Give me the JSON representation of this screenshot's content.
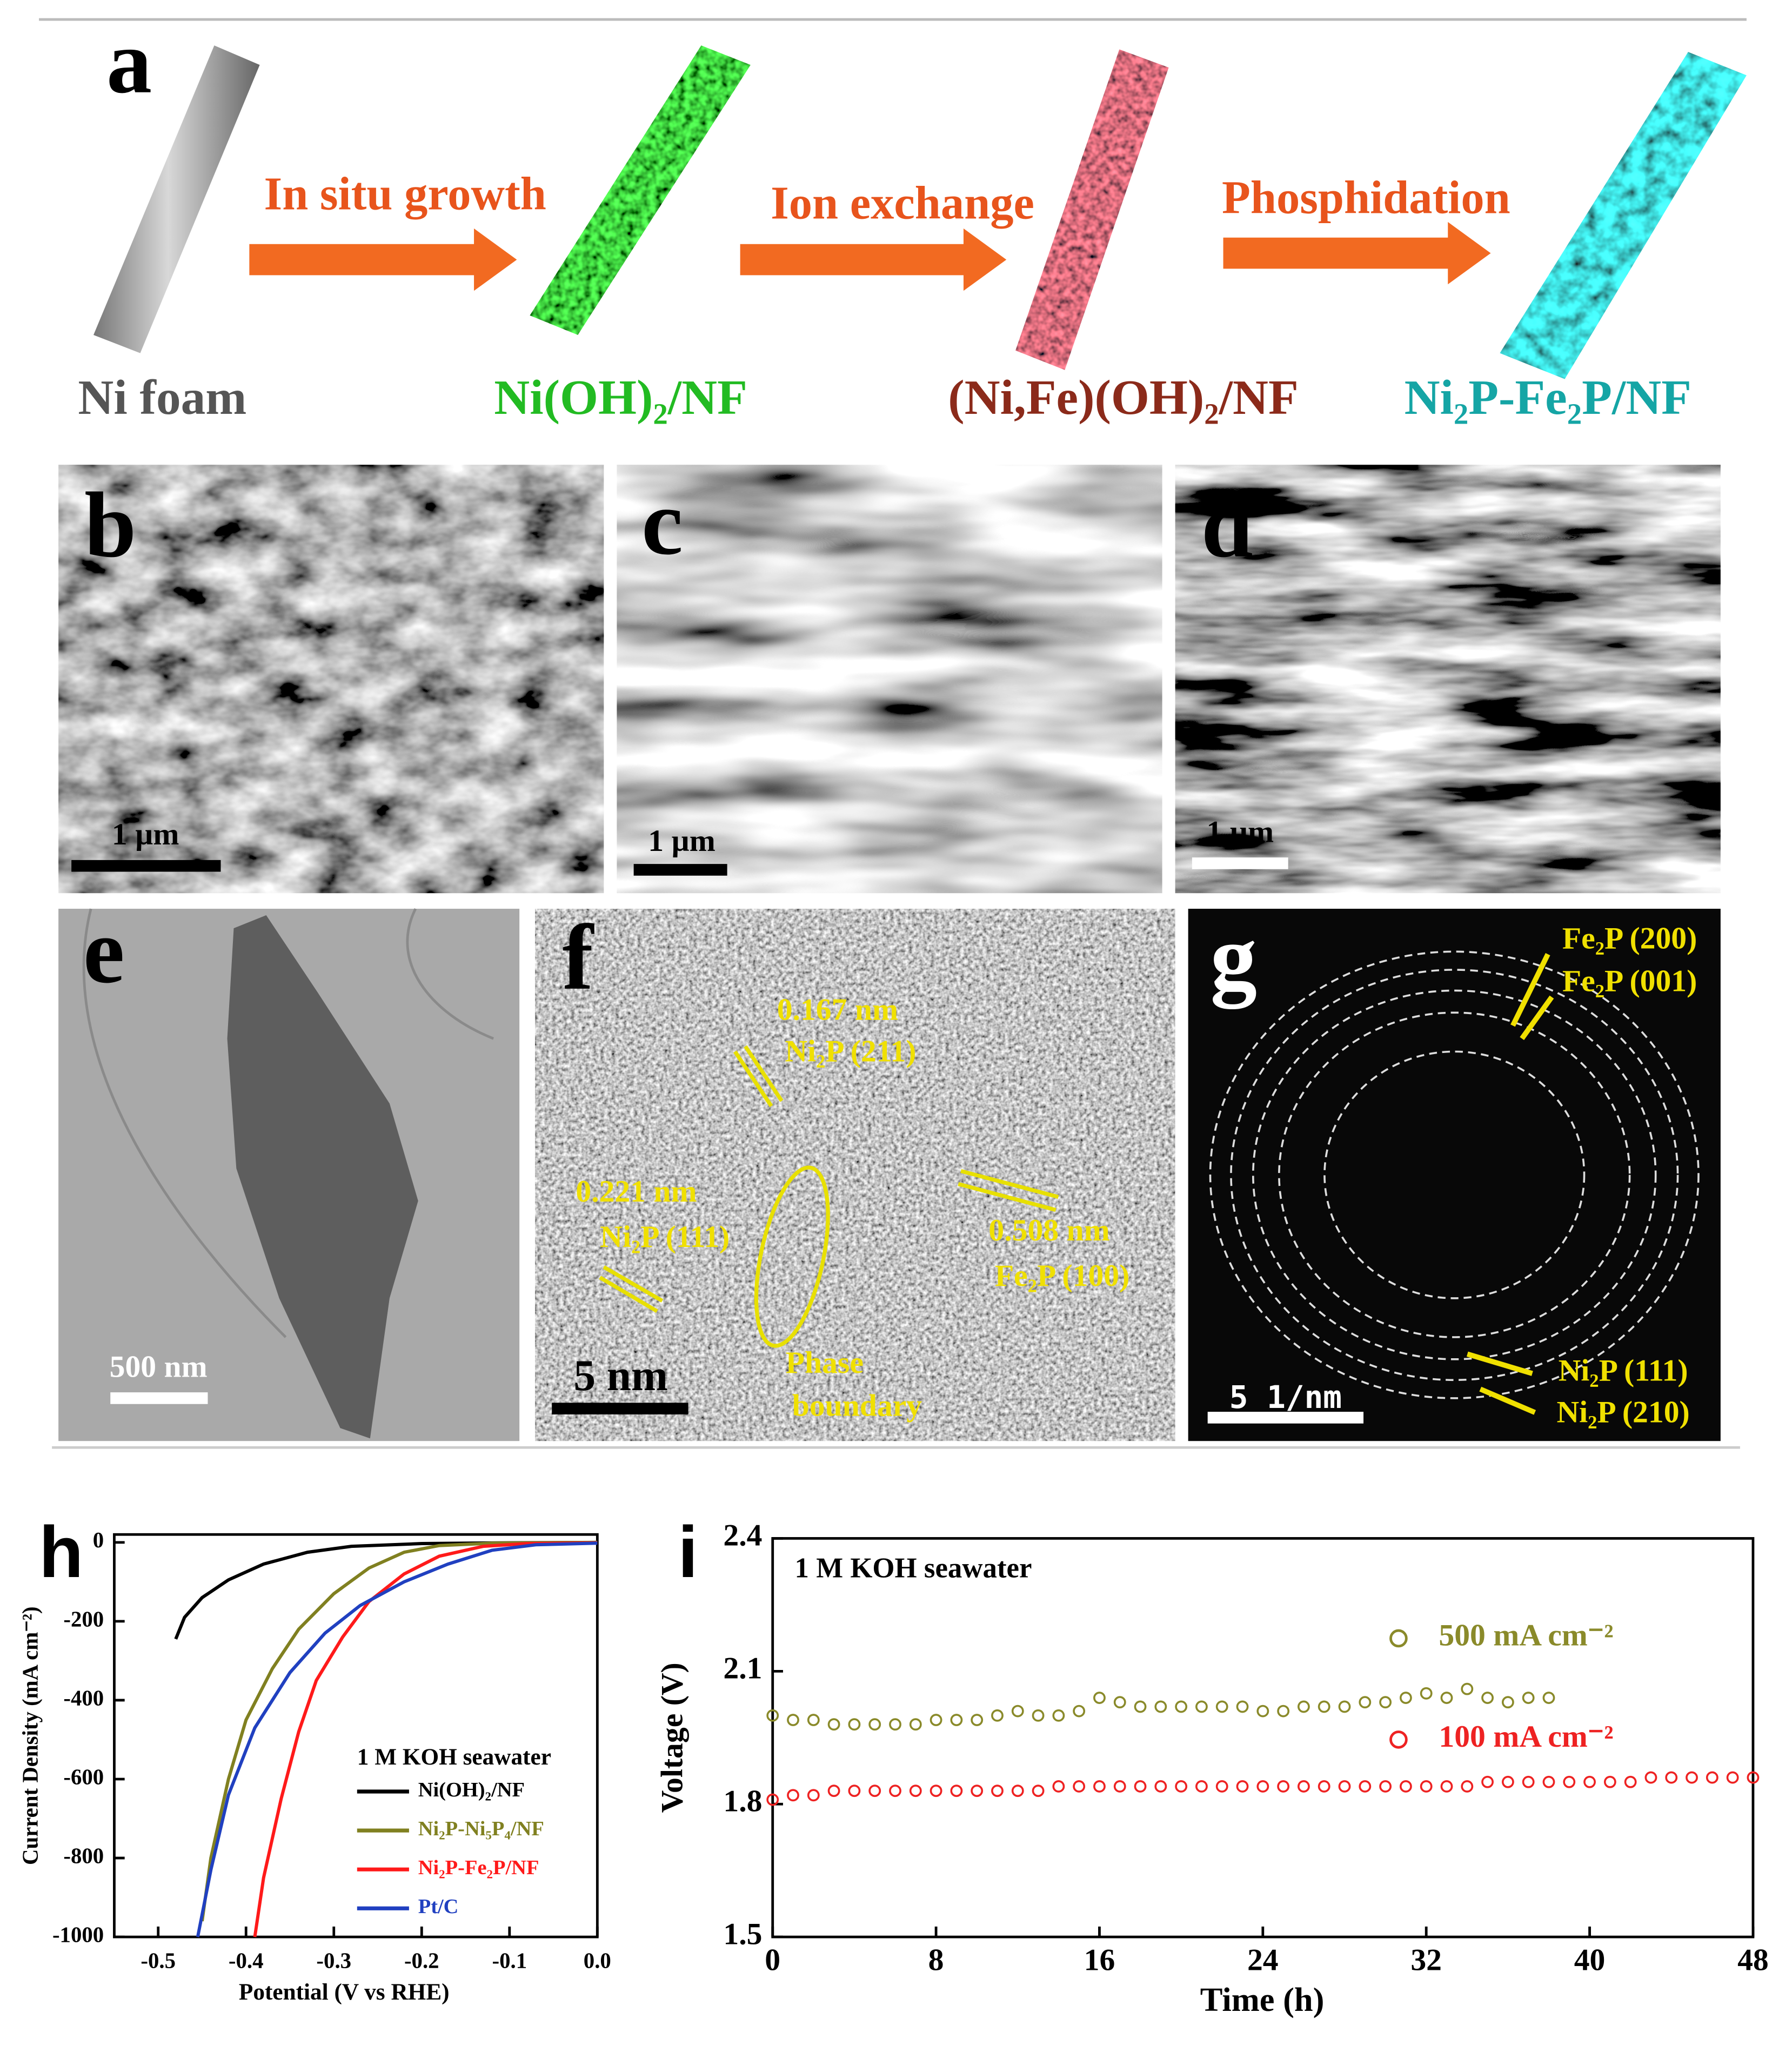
{
  "figure": {
    "scheme": {
      "label": "a",
      "steps": [
        "Ni foam",
        "Ni(OH)₂/NF",
        "(Ni,Fe)(OH)₂/NF",
        "Ni₂P-Fe₂P/NF"
      ],
      "arrows": [
        "In situ growth",
        "Ion exchange",
        "Phosphidation"
      ]
    },
    "panels": [
      {
        "label": "b",
        "scale_bar": "1 µm",
        "annotations": []
      },
      {
        "label": "c",
        "scale_bar": "1 µm",
        "annotations": []
      },
      {
        "label": "d",
        "scale_bar": "1 µm",
        "annotations": []
      },
      {
        "label": "e",
        "scale_bar": "500 nm",
        "annotations": []
      },
      {
        "label": "f",
        "scale_bar": "5 nm",
        "annotations": [
          "0.167 nm",
          "Ni₂P (211)",
          "0.221 nm",
          "Ni₂P (111)",
          "0.508 nm",
          "Fe₂P (100)",
          "Phase",
          "boundary"
        ]
      },
      {
        "label": "g",
        "scale_bar": "5 1/nm",
        "annotations": [
          "Fe₂P (200)",
          "Fe₂P (001)",
          "Ni₂P (111)",
          "Ni₂P (210)"
        ]
      }
    ]
  },
  "chart_data": [
    {
      "type": "line",
      "panel_label": "h",
      "x_label": "Potential (V vs RHE)",
      "y_label": "Current Density (mA cm⁻²)",
      "legend_title": "1 M KOH seawater",
      "xlim": [
        -0.55,
        0
      ],
      "xticks": [
        -0.5,
        -0.4,
        -0.3,
        -0.2,
        -0.1,
        {
          "value": 0,
          "label": "0.0"
        }
      ],
      "ylim": [
        -1000,
        20
      ],
      "yticks": [
        0,
        -200,
        -400,
        -600,
        -800,
        -1000
      ],
      "series": [
        {
          "name": "Ni(OH)₂/NF",
          "color": "#000000",
          "x": [
            -0.48,
            -0.47,
            -0.45,
            -0.42,
            -0.38,
            -0.33,
            -0.28,
            -0.2,
            -0.1,
            0
          ],
          "values": [
            -245,
            -190,
            -140,
            -95,
            -55,
            -25,
            -10,
            -3,
            -1,
            0
          ]
        },
        {
          "name": "Ni₂P-Ni₅P₄/NF",
          "color": "#808020",
          "x": [
            -0.45,
            -0.44,
            -0.42,
            -0.4,
            -0.37,
            -0.34,
            -0.3,
            -0.26,
            -0.22,
            -0.18,
            -0.12,
            0
          ],
          "values": [
            -960,
            -800,
            -600,
            -450,
            -320,
            -220,
            -130,
            -65,
            -25,
            -8,
            -2,
            0
          ]
        },
        {
          "name": "Ni₂P-Fe₂P/NF",
          "color": "#ff1a1a",
          "x": [
            -0.39,
            -0.38,
            -0.36,
            -0.34,
            -0.32,
            -0.29,
            -0.26,
            -0.22,
            -0.18,
            -0.13,
            -0.08,
            0
          ],
          "values": [
            -1000,
            -850,
            -650,
            -480,
            -350,
            -240,
            -150,
            -80,
            -35,
            -10,
            -3,
            -1
          ]
        },
        {
          "name": "Pt/C",
          "color": "#2040c0",
          "x": [
            -0.455,
            -0.44,
            -0.42,
            -0.39,
            -0.35,
            -0.31,
            -0.27,
            -0.22,
            -0.17,
            -0.12,
            -0.07,
            0
          ],
          "values": [
            -1000,
            -830,
            -640,
            -470,
            -330,
            -230,
            -160,
            -100,
            -55,
            -20,
            -6,
            -2
          ]
        }
      ]
    },
    {
      "type": "scatter",
      "panel_label": "i",
      "annotation": "1 M KOH seawater",
      "x_label": "Time (h)",
      "y_label": "Voltage (V)",
      "xlim": [
        0,
        48
      ],
      "xticks": [
        0,
        8,
        16,
        24,
        32,
        40,
        48
      ],
      "ylim": [
        1.5,
        2.4
      ],
      "yticks": [
        1.5,
        1.8,
        2.1,
        2.4
      ],
      "series": [
        {
          "name": "500 mA cm⁻²",
          "color": "#8a8a2a",
          "x": [
            0,
            1,
            2,
            3,
            4,
            5,
            6,
            7,
            8,
            9,
            10,
            11,
            12,
            13,
            14,
            15,
            16,
            17,
            18,
            19,
            20,
            21,
            22,
            23,
            24,
            25,
            26,
            27,
            28,
            29,
            30,
            31,
            32,
            33,
            34,
            35,
            36,
            37,
            38
          ],
          "values": [
            2.0,
            1.99,
            1.99,
            1.98,
            1.98,
            1.98,
            1.98,
            1.98,
            1.99,
            1.99,
            1.99,
            2.0,
            2.01,
            2.0,
            2.0,
            2.01,
            2.04,
            2.03,
            2.02,
            2.02,
            2.02,
            2.02,
            2.02,
            2.02,
            2.01,
            2.01,
            2.02,
            2.02,
            2.02,
            2.03,
            2.03,
            2.04,
            2.05,
            2.04,
            2.06,
            2.04,
            2.03,
            2.04,
            2.04
          ]
        },
        {
          "name": "100 mA cm⁻²",
          "color": "#ee2222",
          "x": [
            0,
            1,
            2,
            3,
            4,
            5,
            6,
            7,
            8,
            9,
            10,
            11,
            12,
            13,
            14,
            15,
            16,
            17,
            18,
            19,
            20,
            21,
            22,
            23,
            24,
            25,
            26,
            27,
            28,
            29,
            30,
            31,
            32,
            33,
            34,
            35,
            36,
            37,
            38,
            39,
            40,
            41,
            42,
            43,
            44,
            45,
            46,
            47,
            48
          ],
          "values": [
            1.81,
            1.82,
            1.82,
            1.83,
            1.83,
            1.83,
            1.83,
            1.83,
            1.83,
            1.83,
            1.83,
            1.83,
            1.83,
            1.83,
            1.84,
            1.84,
            1.84,
            1.84,
            1.84,
            1.84,
            1.84,
            1.84,
            1.84,
            1.84,
            1.84,
            1.84,
            1.84,
            1.84,
            1.84,
            1.84,
            1.84,
            1.84,
            1.84,
            1.84,
            1.84,
            1.85,
            1.85,
            1.85,
            1.85,
            1.85,
            1.85,
            1.85,
            1.85,
            1.86,
            1.86,
            1.86,
            1.86,
            1.86,
            1.86
          ]
        }
      ]
    }
  ]
}
